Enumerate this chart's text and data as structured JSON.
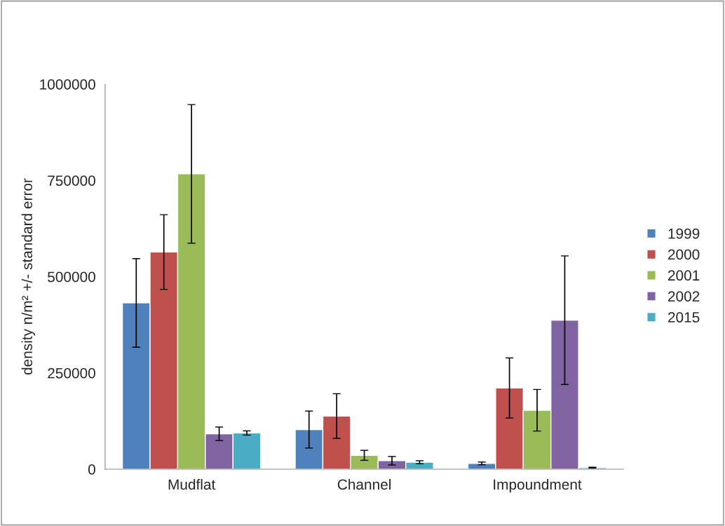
{
  "chart_data": {
    "type": "bar",
    "ylabel": "density n/m² +/- standard error",
    "categories": [
      "Mudflat",
      "Channel",
      "Impoundment"
    ],
    "series": [
      {
        "name": "1999",
        "color": "#4f81bd",
        "values": [
          432000,
          103000,
          15000
        ],
        "errors": [
          115000,
          48000,
          3500
        ]
      },
      {
        "name": "2000",
        "color": "#c0504d",
        "values": [
          564000,
          138000,
          211000
        ],
        "errors": [
          97000,
          58000,
          78000
        ]
      },
      {
        "name": "2001",
        "color": "#9bbb59",
        "values": [
          767000,
          36000,
          153000
        ],
        "errors": [
          180000,
          13000,
          54000
        ]
      },
      {
        "name": "2002",
        "color": "#8064a2",
        "values": [
          92000,
          22000,
          387000
        ],
        "errors": [
          17500,
          11000,
          167000
        ]
      },
      {
        "name": "2015",
        "color": "#4bacc6",
        "values": [
          94000,
          18000,
          4000
        ],
        "errors": [
          5500,
          4000,
          1000
        ]
      }
    ],
    "ylim": [
      0,
      1000000
    ],
    "yticks": [
      0,
      250000,
      500000,
      750000,
      1000000
    ],
    "grid": false,
    "legend": "right"
  }
}
